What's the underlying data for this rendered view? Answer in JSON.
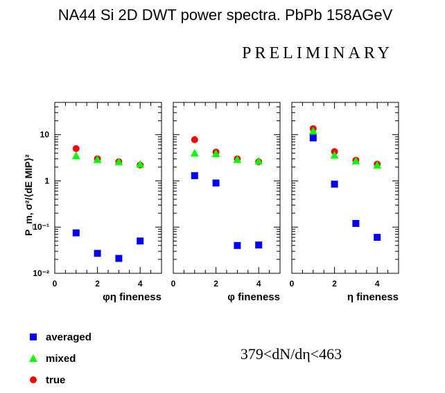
{
  "title": "NA44 Si 2D DWT power spectra. PbPb 158AGeV",
  "watermark": "PRELIMINARY",
  "ylabel": "P_m, σ²/⟨dE MIP⟩²",
  "cut_label": "379<dN/dη<463",
  "legend": [
    {
      "name": "averaged",
      "color": "#0000ff",
      "marker": "square"
    },
    {
      "name": "mixed",
      "color": "#00ff00",
      "marker": "triangle"
    },
    {
      "name": "true",
      "color": "#ff0000",
      "marker": "circle"
    }
  ],
  "chart_data": [
    {
      "type": "scatter",
      "xlabel": "φη fineness",
      "xlim": [
        0,
        5
      ],
      "ylim": [
        0.01,
        50
      ],
      "yscale": "log",
      "xticks": [
        0,
        2,
        4
      ],
      "ytick_labels": [
        "10",
        "1",
        "10⁻¹",
        "10⁻²"
      ],
      "series": [
        {
          "name": "averaged",
          "x": [
            1,
            2,
            3,
            4
          ],
          "y": [
            0.075,
            0.027,
            0.021,
            0.05
          ]
        },
        {
          "name": "mixed",
          "x": [
            1,
            2,
            3,
            4
          ],
          "y": [
            3.5,
            2.9,
            2.6,
            2.3
          ]
        },
        {
          "name": "true",
          "x": [
            1,
            2,
            3,
            4
          ],
          "y": [
            5.0,
            3.0,
            2.6,
            2.2
          ]
        }
      ]
    },
    {
      "type": "scatter",
      "xlabel": "φ fineness",
      "xlim": [
        0,
        5
      ],
      "ylim": [
        0.01,
        50
      ],
      "yscale": "log",
      "xticks": [
        0,
        2,
        4
      ],
      "series": [
        {
          "name": "averaged",
          "x": [
            1,
            2,
            3,
            4
          ],
          "y": [
            1.3,
            0.9,
            0.04,
            0.041
          ]
        },
        {
          "name": "mixed",
          "x": [
            1,
            2,
            3,
            4
          ],
          "y": [
            4.0,
            3.9,
            2.9,
            2.7
          ]
        },
        {
          "name": "true",
          "x": [
            1,
            2,
            3,
            4
          ],
          "y": [
            7.8,
            4.2,
            3.0,
            2.6
          ]
        }
      ]
    },
    {
      "type": "scatter",
      "xlabel": "η fineness",
      "xlim": [
        0,
        5
      ],
      "ylim": [
        0.01,
        50
      ],
      "yscale": "log",
      "xticks": [
        0,
        2,
        4
      ],
      "series": [
        {
          "name": "averaged",
          "x": [
            1,
            2,
            3,
            4
          ],
          "y": [
            8.5,
            0.85,
            0.12,
            0.06
          ]
        },
        {
          "name": "mixed",
          "x": [
            1,
            2,
            3,
            4
          ],
          "y": [
            12.0,
            3.6,
            2.7,
            2.2
          ]
        },
        {
          "name": "true",
          "x": [
            1,
            2,
            3,
            4
          ],
          "y": [
            13.5,
            4.3,
            2.8,
            2.3
          ]
        }
      ]
    }
  ]
}
